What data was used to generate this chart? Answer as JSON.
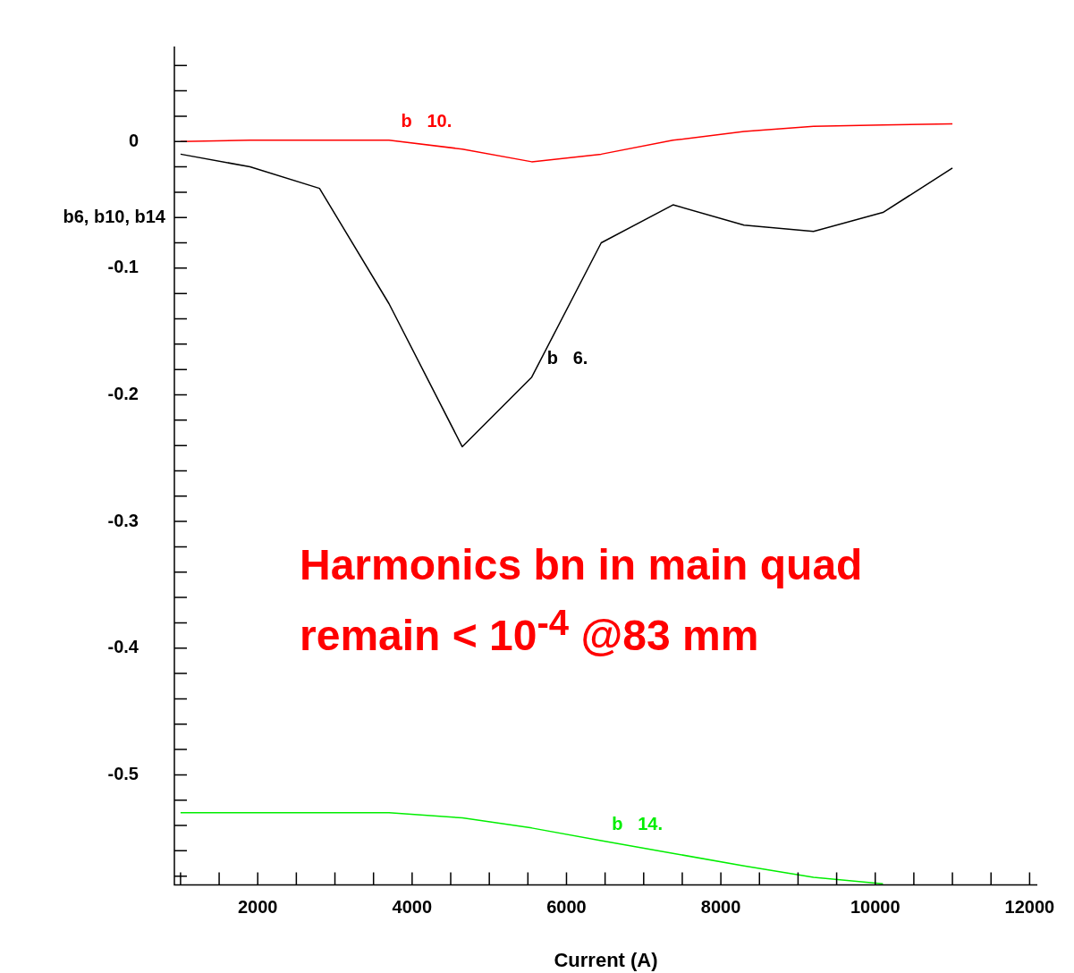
{
  "chart_data": {
    "type": "line",
    "xlabel": "Current (A)",
    "ylabel": "b6, b10, b14",
    "x": [
      1000,
      1900,
      2800,
      3700,
      4650,
      5550,
      6450,
      7380,
      8300,
      9200,
      10100,
      11000
    ],
    "series": [
      {
        "name": "b   10.",
        "color": "#ff0000",
        "values": [
          0,
          0.001,
          0.001,
          0.001,
          -0.006,
          -0.016,
          -0.01,
          0.001,
          0.008,
          0.012,
          0.013,
          0.014
        ]
      },
      {
        "name": "b   6.",
        "color": "#000000",
        "values": [
          -0.01,
          -0.02,
          -0.037,
          -0.128,
          -0.241,
          -0.186,
          -0.08,
          -0.05,
          -0.066,
          -0.071,
          -0.056,
          -0.021
        ]
      },
      {
        "name": "b   14.",
        "color": "#00ee00",
        "values": [
          -0.53,
          -0.53,
          -0.53,
          -0.53,
          -0.534,
          -0.542,
          -0.552,
          -0.562,
          -0.572,
          -0.581,
          -0.586,
          null
        ]
      }
    ],
    "xlim": [
      920,
      12100
    ],
    "ylim": [
      -0.587,
      0.075
    ],
    "xticks": [
      {
        "value": 1000,
        "label": null
      },
      {
        "value": 1500,
        "label": null
      },
      2000,
      {
        "value": 2500,
        "label": null
      },
      {
        "value": 3000,
        "label": null
      },
      {
        "value": 3500,
        "label": null
      },
      4000,
      {
        "value": 4500,
        "label": null
      },
      {
        "value": 5000,
        "label": null
      },
      {
        "value": 5500,
        "label": null
      },
      6000,
      {
        "value": 6500,
        "label": null
      },
      {
        "value": 7000,
        "label": null
      },
      {
        "value": 7500,
        "label": null
      },
      8000,
      {
        "value": 8500,
        "label": null
      },
      {
        "value": 9000,
        "label": null
      },
      {
        "value": 9500,
        "label": null
      },
      10000,
      {
        "value": 10500,
        "label": null
      },
      {
        "value": 11000,
        "label": null
      },
      {
        "value": 11500,
        "label": null
      },
      12000
    ],
    "yticks": [
      {
        "value": 0.06,
        "label": null
      },
      {
        "value": 0.04,
        "label": null
      },
      {
        "value": 0.02,
        "label": null
      },
      0,
      {
        "value": -0.02,
        "label": null
      },
      {
        "value": -0.04,
        "label": null
      },
      {
        "value": -0.06,
        "label": null
      },
      {
        "value": -0.08,
        "label": null
      },
      -0.1,
      {
        "value": -0.12,
        "label": null
      },
      {
        "value": -0.14,
        "label": null
      },
      {
        "value": -0.16,
        "label": null
      },
      {
        "value": -0.18,
        "label": null
      },
      -0.2,
      {
        "value": -0.22,
        "label": null
      },
      {
        "value": -0.24,
        "label": null
      },
      {
        "value": -0.26,
        "label": null
      },
      {
        "value": -0.28,
        "label": null
      },
      -0.3,
      {
        "value": -0.32,
        "label": null
      },
      {
        "value": -0.34,
        "label": null
      },
      {
        "value": -0.36,
        "label": null
      },
      {
        "value": -0.38,
        "label": null
      },
      -0.4,
      {
        "value": -0.42,
        "label": null
      },
      {
        "value": -0.44,
        "label": null
      },
      {
        "value": -0.46,
        "label": null
      },
      {
        "value": -0.48,
        "label": null
      },
      -0.5,
      {
        "value": -0.52,
        "label": null
      },
      {
        "value": -0.54,
        "label": null
      },
      {
        "value": -0.56,
        "label": null
      },
      {
        "value": -0.58,
        "label": null
      }
    ],
    "grid": false,
    "legend": false,
    "marker": "none",
    "line_style": "solid",
    "annotations": [
      "Harmonics bn in main quad",
      "remain < 10$^{-4}$  @83 mm"
    ]
  }
}
